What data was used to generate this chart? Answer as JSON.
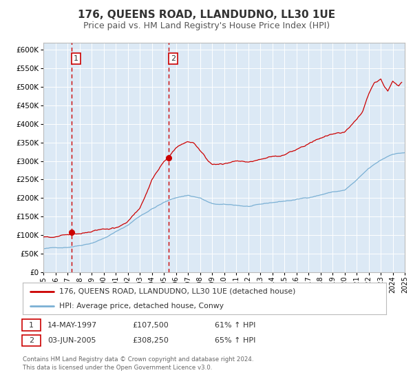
{
  "title": "176, QUEENS ROAD, LLANDUDNO, LL30 1UE",
  "subtitle": "Price paid vs. HM Land Registry's House Price Index (HPI)",
  "title_fontsize": 11,
  "subtitle_fontsize": 9,
  "xlim": [
    1995.0,
    2025.0
  ],
  "ylim": [
    0,
    620000
  ],
  "yticks": [
    0,
    50000,
    100000,
    150000,
    200000,
    250000,
    300000,
    350000,
    400000,
    450000,
    500000,
    550000,
    600000
  ],
  "xticks": [
    1995,
    1996,
    1997,
    1998,
    1999,
    2000,
    2001,
    2002,
    2003,
    2004,
    2005,
    2006,
    2007,
    2008,
    2009,
    2010,
    2011,
    2012,
    2013,
    2014,
    2015,
    2016,
    2017,
    2018,
    2019,
    2020,
    2021,
    2022,
    2023,
    2024,
    2025
  ],
  "red_line_color": "#cc0000",
  "blue_line_color": "#7ab0d4",
  "point1_x": 1997.37,
  "point1_y": 107500,
  "point2_x": 2005.42,
  "point2_y": 308250,
  "vline1_x": 1997.37,
  "vline2_x": 2005.42,
  "legend_label_red": "176, QUEENS ROAD, LLANDUDNO, LL30 1UE (detached house)",
  "legend_label_blue": "HPI: Average price, detached house, Conwy",
  "table_row1": [
    "1",
    "14-MAY-1997",
    "£107,500",
    "61% ↑ HPI"
  ],
  "table_row2": [
    "2",
    "03-JUN-2005",
    "£308,250",
    "65% ↑ HPI"
  ],
  "footer_line1": "Contains HM Land Registry data © Crown copyright and database right 2024.",
  "footer_line2": "This data is licensed under the Open Government Licence v3.0.",
  "plot_bg_color": "#dce9f5",
  "outer_bg_color": "#ffffff",
  "grid_color": "#ffffff"
}
